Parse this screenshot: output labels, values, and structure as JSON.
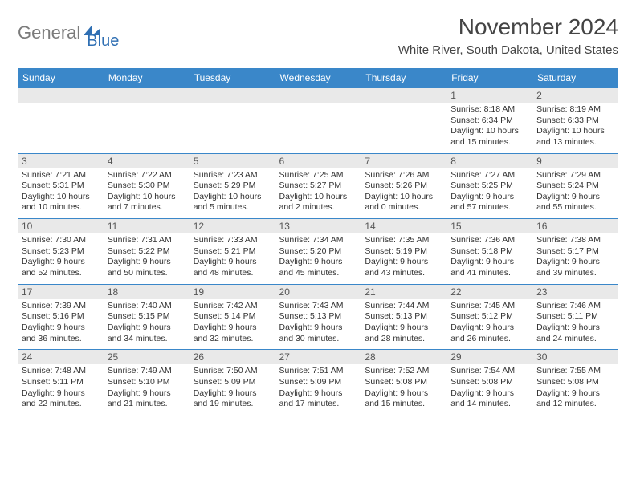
{
  "logo": {
    "word1": "General",
    "word2": "Blue"
  },
  "title": "November 2024",
  "location": "White River, South Dakota, United States",
  "colors": {
    "header_bg": "#3a87c9",
    "header_text": "#ffffff",
    "daynum_bg": "#e9e9e9",
    "border": "#3a87c9",
    "logo_gray": "#7b7b7b",
    "logo_blue": "#2f6fb3"
  },
  "daynames": [
    "Sunday",
    "Monday",
    "Tuesday",
    "Wednesday",
    "Thursday",
    "Friday",
    "Saturday"
  ],
  "weeks": [
    [
      null,
      null,
      null,
      null,
      null,
      {
        "num": "1",
        "sunrise": "Sunrise: 8:18 AM",
        "sunset": "Sunset: 6:34 PM",
        "daylight": "Daylight: 10 hours and 15 minutes."
      },
      {
        "num": "2",
        "sunrise": "Sunrise: 8:19 AM",
        "sunset": "Sunset: 6:33 PM",
        "daylight": "Daylight: 10 hours and 13 minutes."
      }
    ],
    [
      {
        "num": "3",
        "sunrise": "Sunrise: 7:21 AM",
        "sunset": "Sunset: 5:31 PM",
        "daylight": "Daylight: 10 hours and 10 minutes."
      },
      {
        "num": "4",
        "sunrise": "Sunrise: 7:22 AM",
        "sunset": "Sunset: 5:30 PM",
        "daylight": "Daylight: 10 hours and 7 minutes."
      },
      {
        "num": "5",
        "sunrise": "Sunrise: 7:23 AM",
        "sunset": "Sunset: 5:29 PM",
        "daylight": "Daylight: 10 hours and 5 minutes."
      },
      {
        "num": "6",
        "sunrise": "Sunrise: 7:25 AM",
        "sunset": "Sunset: 5:27 PM",
        "daylight": "Daylight: 10 hours and 2 minutes."
      },
      {
        "num": "7",
        "sunrise": "Sunrise: 7:26 AM",
        "sunset": "Sunset: 5:26 PM",
        "daylight": "Daylight: 10 hours and 0 minutes."
      },
      {
        "num": "8",
        "sunrise": "Sunrise: 7:27 AM",
        "sunset": "Sunset: 5:25 PM",
        "daylight": "Daylight: 9 hours and 57 minutes."
      },
      {
        "num": "9",
        "sunrise": "Sunrise: 7:29 AM",
        "sunset": "Sunset: 5:24 PM",
        "daylight": "Daylight: 9 hours and 55 minutes."
      }
    ],
    [
      {
        "num": "10",
        "sunrise": "Sunrise: 7:30 AM",
        "sunset": "Sunset: 5:23 PM",
        "daylight": "Daylight: 9 hours and 52 minutes."
      },
      {
        "num": "11",
        "sunrise": "Sunrise: 7:31 AM",
        "sunset": "Sunset: 5:22 PM",
        "daylight": "Daylight: 9 hours and 50 minutes."
      },
      {
        "num": "12",
        "sunrise": "Sunrise: 7:33 AM",
        "sunset": "Sunset: 5:21 PM",
        "daylight": "Daylight: 9 hours and 48 minutes."
      },
      {
        "num": "13",
        "sunrise": "Sunrise: 7:34 AM",
        "sunset": "Sunset: 5:20 PM",
        "daylight": "Daylight: 9 hours and 45 minutes."
      },
      {
        "num": "14",
        "sunrise": "Sunrise: 7:35 AM",
        "sunset": "Sunset: 5:19 PM",
        "daylight": "Daylight: 9 hours and 43 minutes."
      },
      {
        "num": "15",
        "sunrise": "Sunrise: 7:36 AM",
        "sunset": "Sunset: 5:18 PM",
        "daylight": "Daylight: 9 hours and 41 minutes."
      },
      {
        "num": "16",
        "sunrise": "Sunrise: 7:38 AM",
        "sunset": "Sunset: 5:17 PM",
        "daylight": "Daylight: 9 hours and 39 minutes."
      }
    ],
    [
      {
        "num": "17",
        "sunrise": "Sunrise: 7:39 AM",
        "sunset": "Sunset: 5:16 PM",
        "daylight": "Daylight: 9 hours and 36 minutes."
      },
      {
        "num": "18",
        "sunrise": "Sunrise: 7:40 AM",
        "sunset": "Sunset: 5:15 PM",
        "daylight": "Daylight: 9 hours and 34 minutes."
      },
      {
        "num": "19",
        "sunrise": "Sunrise: 7:42 AM",
        "sunset": "Sunset: 5:14 PM",
        "daylight": "Daylight: 9 hours and 32 minutes."
      },
      {
        "num": "20",
        "sunrise": "Sunrise: 7:43 AM",
        "sunset": "Sunset: 5:13 PM",
        "daylight": "Daylight: 9 hours and 30 minutes."
      },
      {
        "num": "21",
        "sunrise": "Sunrise: 7:44 AM",
        "sunset": "Sunset: 5:13 PM",
        "daylight": "Daylight: 9 hours and 28 minutes."
      },
      {
        "num": "22",
        "sunrise": "Sunrise: 7:45 AM",
        "sunset": "Sunset: 5:12 PM",
        "daylight": "Daylight: 9 hours and 26 minutes."
      },
      {
        "num": "23",
        "sunrise": "Sunrise: 7:46 AM",
        "sunset": "Sunset: 5:11 PM",
        "daylight": "Daylight: 9 hours and 24 minutes."
      }
    ],
    [
      {
        "num": "24",
        "sunrise": "Sunrise: 7:48 AM",
        "sunset": "Sunset: 5:11 PM",
        "daylight": "Daylight: 9 hours and 22 minutes."
      },
      {
        "num": "25",
        "sunrise": "Sunrise: 7:49 AM",
        "sunset": "Sunset: 5:10 PM",
        "daylight": "Daylight: 9 hours and 21 minutes."
      },
      {
        "num": "26",
        "sunrise": "Sunrise: 7:50 AM",
        "sunset": "Sunset: 5:09 PM",
        "daylight": "Daylight: 9 hours and 19 minutes."
      },
      {
        "num": "27",
        "sunrise": "Sunrise: 7:51 AM",
        "sunset": "Sunset: 5:09 PM",
        "daylight": "Daylight: 9 hours and 17 minutes."
      },
      {
        "num": "28",
        "sunrise": "Sunrise: 7:52 AM",
        "sunset": "Sunset: 5:08 PM",
        "daylight": "Daylight: 9 hours and 15 minutes."
      },
      {
        "num": "29",
        "sunrise": "Sunrise: 7:54 AM",
        "sunset": "Sunset: 5:08 PM",
        "daylight": "Daylight: 9 hours and 14 minutes."
      },
      {
        "num": "30",
        "sunrise": "Sunrise: 7:55 AM",
        "sunset": "Sunset: 5:08 PM",
        "daylight": "Daylight: 9 hours and 12 minutes."
      }
    ]
  ]
}
